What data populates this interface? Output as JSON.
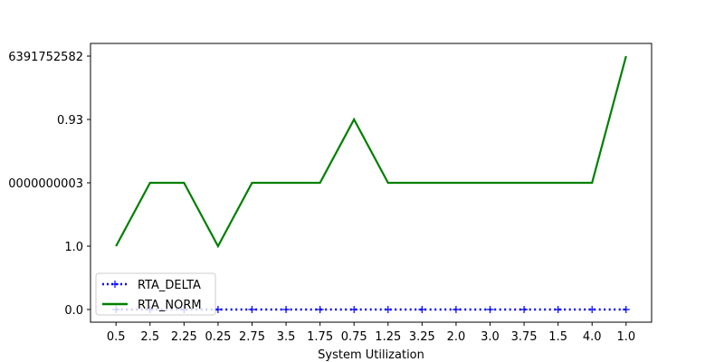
{
  "chart_data": {
    "type": "line",
    "title": "",
    "xlabel": "System Utilization",
    "ylabel": "",
    "categories": [
      "0.5",
      "2.5",
      "2.25",
      "0.25",
      "2.75",
      "3.5",
      "1.75",
      "0.75",
      "1.25",
      "3.25",
      "2.0",
      "3.0",
      "3.75",
      "1.5",
      "4.0",
      "1.0"
    ],
    "y_ticks": [
      {
        "level": 0,
        "label": "0.0"
      },
      {
        "level": 1,
        "label": "1.0"
      },
      {
        "level": 2,
        "label": "0000000003"
      },
      {
        "level": 3,
        "label": "0.93"
      },
      {
        "level": 4,
        "label": "6391752582"
      }
    ],
    "ylim": [
      -0.2,
      4.2
    ],
    "series": [
      {
        "name": "RTA_DELTA",
        "color": "#0000ff",
        "style": "dotted",
        "marker": "plus",
        "values": [
          0,
          0,
          0,
          0,
          0,
          0,
          0,
          0,
          0,
          0,
          0,
          0,
          0,
          0,
          0,
          0
        ]
      },
      {
        "name": "RTA_NORM",
        "color": "#008000",
        "style": "solid",
        "marker": "none",
        "values": [
          1,
          2,
          2,
          1,
          2,
          2,
          2,
          3,
          2,
          2,
          2,
          2,
          2,
          2,
          2,
          4
        ]
      }
    ],
    "legend": "lower-left",
    "grid": false
  }
}
